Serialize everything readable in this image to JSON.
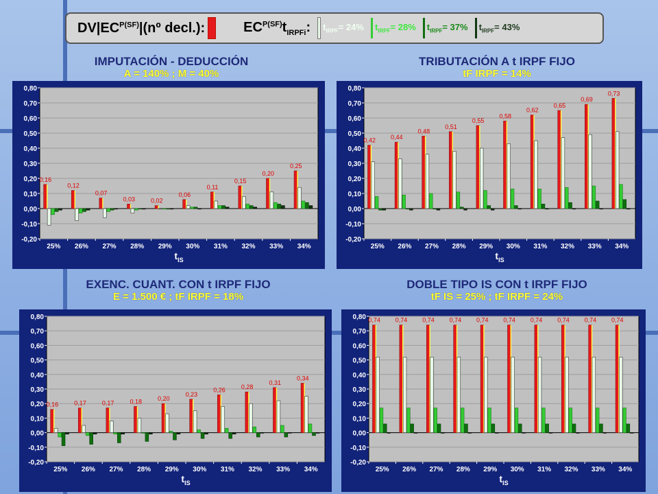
{
  "header": {
    "text_pre": "DV|EC",
    "text_pre_sup": "P(SF)",
    "text_mid": "|(nº decl.):",
    "text_ec": "EC",
    "text_ec_sup": "P(SF)",
    "text_t": "t",
    "text_t_sub": "IRPFi",
    "text_colon": ":",
    "legend": [
      {
        "t": "t",
        "sub": "IRPF",
        "rest": "= 24%",
        "color": "#d6f5d6"
      },
      {
        "t": "t",
        "sub": "IRPF",
        "rest": "= 28%",
        "color": "#3ee83e"
      },
      {
        "t": "t",
        "sub": "IRPF",
        "rest": "= 37%",
        "color": "#1a8a1a"
      },
      {
        "t": "t",
        "sub": "IRPF",
        "rest": "= 43%",
        "color": "#0c3d0c"
      }
    ]
  },
  "colors": {
    "red": "#e41a1c",
    "very_light_green": "#e8f8e8",
    "bright_green": "#33cc33",
    "dark_green": "#0f6e0f",
    "darkest_green": "#103810",
    "plot_bg": "#c0c0c0",
    "frame": "#12237a"
  },
  "chart_data": [
    {
      "type": "bar",
      "title": "IMPUTACIÓN - DEDUCCIÓN",
      "subtitle": "A = 140%   ;   M = 40%",
      "xlabel_t": "t",
      "xlabel_sub": "IS",
      "ylim": [
        -0.2,
        0.8
      ],
      "yticks": [
        "0,80",
        "0,70",
        "0,60",
        "0,50",
        "0,40",
        "0,30",
        "0,20",
        "0,10",
        "0,00",
        "-0,10",
        "-0,20"
      ],
      "categories": [
        "25%",
        "26%",
        "27%",
        "28%",
        "29%",
        "30%",
        "31%",
        "32%",
        "33%",
        "34%"
      ],
      "series": [
        {
          "values": [
            0.16,
            0.12,
            0.07,
            0.03,
            0.02,
            0.06,
            0.11,
            0.15,
            0.2,
            0.25
          ]
        },
        {
          "values": [
            -0.11,
            -0.08,
            -0.06,
            -0.03,
            0.0,
            0.02,
            0.05,
            0.08,
            0.11,
            0.14
          ]
        },
        {
          "values": [
            -0.04,
            -0.03,
            -0.02,
            -0.01,
            0.0,
            0.01,
            0.02,
            0.03,
            0.04,
            0.05
          ]
        },
        {
          "values": [
            -0.02,
            -0.02,
            -0.01,
            0.0,
            0.0,
            0.01,
            0.02,
            0.02,
            0.03,
            0.04
          ]
        },
        {
          "values": [
            -0.01,
            -0.01,
            0.0,
            0.0,
            0.0,
            0.0,
            0.01,
            0.01,
            0.02,
            0.02
          ]
        }
      ],
      "data_labels": [
        "0,16",
        "0,12",
        "0,07",
        "0,03",
        "0,02",
        "0,06",
        "0,11",
        "0,15",
        "0,20",
        "0,25"
      ]
    },
    {
      "type": "bar",
      "title": "TRIBUTACIÓN A t IRPF FIJO",
      "subtitle": "tF IRPF = 14%",
      "xlabel_t": "t",
      "xlabel_sub": "IS",
      "ylim": [
        -0.2,
        0.8
      ],
      "yticks": [
        "0,80",
        "0,70",
        "0,60",
        "0,50",
        "0,40",
        "0,30",
        "0,20",
        "0,10",
        "0,00",
        "-0,10",
        "-0,20"
      ],
      "categories": [
        "25%",
        "26%",
        "27%",
        "28%",
        "29%",
        "30%",
        "31%",
        "32%",
        "33%",
        "34%"
      ],
      "series": [
        {
          "values": [
            0.42,
            0.44,
            0.48,
            0.51,
            0.55,
            0.58,
            0.62,
            0.65,
            0.69,
            0.73
          ]
        },
        {
          "values": [
            0.31,
            0.33,
            0.36,
            0.38,
            0.4,
            0.43,
            0.45,
            0.47,
            0.49,
            0.51
          ]
        },
        {
          "values": [
            0.08,
            0.09,
            0.1,
            0.11,
            0.12,
            0.13,
            0.13,
            0.14,
            0.15,
            0.16
          ]
        },
        {
          "values": [
            -0.01,
            0.0,
            0.0,
            0.01,
            0.02,
            0.02,
            0.03,
            0.04,
            0.05,
            0.06
          ]
        },
        {
          "values": [
            -0.01,
            -0.01,
            -0.01,
            -0.01,
            -0.01,
            0.0,
            0.0,
            0.0,
            0.0,
            0.0
          ]
        }
      ],
      "data_labels": [
        "0,42",
        "0,44",
        "0,48",
        "0,51",
        "0,55",
        "0,58",
        "0,62",
        "0,65",
        "0,69",
        "0,73"
      ]
    },
    {
      "type": "bar",
      "title": "EXENC. CUANT. CON t IRPF FIJO",
      "subtitle": "E = 1.500 €   ;   tF IRPF = 18%",
      "xlabel_t": "t",
      "xlabel_sub": "IS",
      "ylim": [
        -0.2,
        0.8
      ],
      "yticks": [
        "0,80",
        "0,70",
        "0,60",
        "0,50",
        "0,40",
        "0,30",
        "0,20",
        "0,10",
        "0,00",
        "-0,10",
        "-0,20"
      ],
      "categories": [
        "25%",
        "26%",
        "27%",
        "28%",
        "29%",
        "30%",
        "31%",
        "32%",
        "33%",
        "34%"
      ],
      "series": [
        {
          "values": [
            0.16,
            0.17,
            0.17,
            0.18,
            0.2,
            0.23,
            0.26,
            0.28,
            0.31,
            0.34
          ]
        },
        {
          "values": [
            0.03,
            0.05,
            0.08,
            0.1,
            0.13,
            0.15,
            0.18,
            0.2,
            0.22,
            0.25
          ]
        },
        {
          "values": [
            -0.03,
            -0.02,
            -0.01,
            0.0,
            0.01,
            0.02,
            0.03,
            0.04,
            0.05,
            0.06
          ]
        },
        {
          "values": [
            -0.09,
            -0.08,
            -0.07,
            -0.06,
            -0.05,
            -0.04,
            -0.04,
            -0.03,
            -0.03,
            -0.02
          ]
        },
        {
          "values": [
            -0.01,
            -0.01,
            -0.01,
            -0.01,
            -0.01,
            -0.01,
            -0.01,
            0.0,
            0.0,
            0.0
          ]
        }
      ],
      "data_labels": [
        "0,16",
        "0,17",
        "0,17",
        "0,18",
        "0,20",
        "0,23",
        "0,26",
        "0,28",
        "0,31",
        "0,34"
      ]
    },
    {
      "type": "bar",
      "title": "DOBLE TIPO IS CON t IRPF FIJO",
      "subtitle": "tF IS = 25% ;   tF IRPF = 24%",
      "xlabel_t": "t",
      "xlabel_sub": "IS",
      "ylim": [
        -0.2,
        0.8
      ],
      "yticks": [
        "0,80",
        "0,70",
        "0,60",
        "0,50",
        "0,40",
        "0,30",
        "0,20",
        "0,10",
        "0,00",
        "-0,10",
        "-0,20"
      ],
      "categories": [
        "25%",
        "26%",
        "27%",
        "28%",
        "29%",
        "30%",
        "31%",
        "32%",
        "33%",
        "34%"
      ],
      "series": [
        {
          "values": [
            0.74,
            0.74,
            0.74,
            0.74,
            0.74,
            0.74,
            0.74,
            0.74,
            0.74,
            0.74
          ]
        },
        {
          "values": [
            0.52,
            0.52,
            0.52,
            0.52,
            0.52,
            0.52,
            0.52,
            0.52,
            0.52,
            0.52
          ]
        },
        {
          "values": [
            0.17,
            0.17,
            0.17,
            0.17,
            0.17,
            0.17,
            0.17,
            0.17,
            0.17,
            0.17
          ]
        },
        {
          "values": [
            0.06,
            0.06,
            0.06,
            0.06,
            0.06,
            0.06,
            0.06,
            0.06,
            0.06,
            0.06
          ]
        },
        {
          "values": [
            0.0,
            0.0,
            0.0,
            0.0,
            0.0,
            0.0,
            0.0,
            0.0,
            0.0,
            0.0
          ]
        }
      ],
      "data_labels": [
        "0,74",
        "0,74",
        "0,74",
        "0,74",
        "0,74",
        "0,74",
        "0,74",
        "0,74",
        "0,74",
        "0,74"
      ]
    }
  ]
}
